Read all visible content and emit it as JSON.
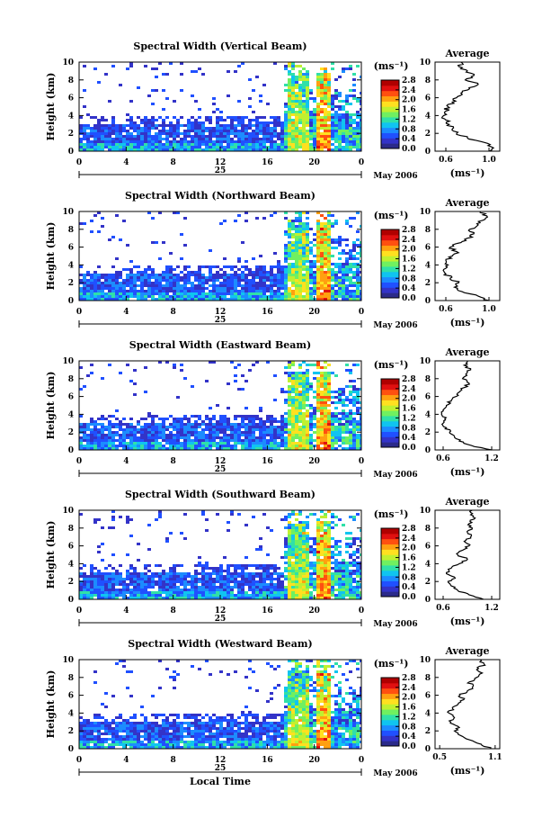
{
  "colors": {
    "scale": [
      "#2b2a8a",
      "#3333c8",
      "#2050ff",
      "#1c8cff",
      "#10c4f0",
      "#30e0a8",
      "#70f060",
      "#c0f030",
      "#ffe020",
      "#ffa010",
      "#ff5010",
      "#e01010",
      "#b00000"
    ],
    "background": "#ffffff"
  },
  "chart_data": [
    {
      "type": "heatmap",
      "title": "Spectral Width (Vertical Beam)",
      "ylabel": "Height (km)",
      "ylim": [
        0,
        10
      ],
      "y_ticks": [
        "0",
        "2",
        "4",
        "6",
        "8",
        "10"
      ],
      "x_ticks": [
        "0",
        "4",
        "8",
        "12",
        "16",
        "20",
        "0"
      ],
      "date_label": "25",
      "month_label": "May 2006",
      "colorbar": {
        "unit": "(ms⁻¹)",
        "ticks": [
          "0.0",
          "0.4",
          "0.8",
          "1.2",
          "1.6",
          "2.0",
          "2.4",
          "2.8"
        ],
        "range": [
          0,
          2.8
        ]
      },
      "profile": {
        "title": "Average",
        "xlabel": "(ms⁻¹)",
        "x_ticks": [
          "0.6",
          "1.0"
        ],
        "xlim": [
          0.5,
          1.1
        ],
        "points": [
          [
            0.0,
            1.0
          ],
          [
            0.5,
            1.02
          ],
          [
            1.0,
            0.95
          ],
          [
            1.5,
            0.8
          ],
          [
            2.0,
            0.7
          ],
          [
            2.5,
            0.66
          ],
          [
            3.0,
            0.63
          ],
          [
            3.5,
            0.6
          ],
          [
            4.0,
            0.58
          ],
          [
            4.5,
            0.6
          ],
          [
            5.0,
            0.62
          ],
          [
            5.5,
            0.66
          ],
          [
            6.0,
            0.7
          ],
          [
            6.5,
            0.74
          ],
          [
            7.0,
            0.82
          ],
          [
            7.5,
            0.9
          ],
          [
            8.0,
            0.78
          ],
          [
            8.5,
            0.86
          ],
          [
            9.0,
            0.8
          ],
          [
            9.5,
            0.72
          ],
          [
            10.0,
            0.74
          ]
        ]
      }
    },
    {
      "type": "heatmap",
      "title": "Spectral Width (Northward Beam)",
      "ylabel": "Height (km)",
      "ylim": [
        0,
        10
      ],
      "y_ticks": [
        "0",
        "2",
        "4",
        "6",
        "8",
        "10"
      ],
      "x_ticks": [
        "0",
        "4",
        "8",
        "12",
        "16",
        "20",
        "0"
      ],
      "date_label": "25",
      "month_label": "May 2006",
      "colorbar": {
        "unit": "(ms⁻¹)",
        "ticks": [
          "0.0",
          "0.4",
          "0.8",
          "1.2",
          "1.6",
          "2.0",
          "2.4",
          "2.8"
        ],
        "range": [
          0,
          2.8
        ]
      },
      "profile": {
        "title": "Average",
        "xlabel": "(ms⁻¹)",
        "x_ticks": [
          "0.6",
          "1.0"
        ],
        "xlim": [
          0.5,
          1.1
        ],
        "points": [
          [
            0.0,
            1.0
          ],
          [
            0.5,
            0.9
          ],
          [
            1.0,
            0.75
          ],
          [
            1.5,
            0.68
          ],
          [
            2.0,
            0.72
          ],
          [
            2.5,
            0.64
          ],
          [
            3.0,
            0.6
          ],
          [
            3.5,
            0.58
          ],
          [
            4.0,
            0.62
          ],
          [
            4.5,
            0.6
          ],
          [
            5.0,
            0.66
          ],
          [
            5.5,
            0.7
          ],
          [
            6.0,
            0.64
          ],
          [
            6.5,
            0.74
          ],
          [
            7.0,
            0.8
          ],
          [
            7.5,
            0.86
          ],
          [
            8.0,
            0.82
          ],
          [
            8.5,
            0.9
          ],
          [
            9.0,
            0.94
          ],
          [
            9.5,
            0.98
          ],
          [
            10.0,
            0.92
          ]
        ]
      }
    },
    {
      "type": "heatmap",
      "title": "Spectral Width (Eastward Beam)",
      "ylabel": "Height (km)",
      "ylim": [
        0,
        10
      ],
      "y_ticks": [
        "0",
        "2",
        "4",
        "6",
        "8",
        "10"
      ],
      "x_ticks": [
        "0",
        "4",
        "8",
        "12",
        "16",
        "20",
        "0"
      ],
      "date_label": "25",
      "month_label": "May 2006",
      "colorbar": {
        "unit": "(ms⁻¹)",
        "ticks": [
          "0.0",
          "0.4",
          "0.8",
          "1.2",
          "1.6",
          "2.0",
          "2.4",
          "2.8"
        ],
        "range": [
          0,
          2.8
        ]
      },
      "profile": {
        "title": "Average",
        "xlabel": "(ms⁻¹)",
        "x_ticks": [
          "0.6",
          "1.2"
        ],
        "xlim": [
          0.5,
          1.3
        ],
        "points": [
          [
            0.0,
            1.2
          ],
          [
            0.5,
            0.95
          ],
          [
            1.0,
            0.8
          ],
          [
            1.5,
            0.74
          ],
          [
            2.0,
            0.68
          ],
          [
            2.5,
            0.64
          ],
          [
            3.0,
            0.6
          ],
          [
            3.5,
            0.62
          ],
          [
            4.0,
            0.58
          ],
          [
            4.5,
            0.6
          ],
          [
            5.0,
            0.64
          ],
          [
            5.5,
            0.7
          ],
          [
            6.0,
            0.76
          ],
          [
            6.5,
            0.8
          ],
          [
            7.0,
            0.86
          ],
          [
            7.5,
            0.92
          ],
          [
            8.0,
            0.84
          ],
          [
            8.5,
            0.88
          ],
          [
            9.0,
            0.94
          ],
          [
            9.5,
            0.86
          ],
          [
            10.0,
            0.9
          ]
        ]
      }
    },
    {
      "type": "heatmap",
      "title": "Spectral Width (Southward Beam)",
      "ylabel": "Height (km)",
      "ylim": [
        0,
        10
      ],
      "y_ticks": [
        "0",
        "2",
        "4",
        "6",
        "8",
        "10"
      ],
      "x_ticks": [
        "0",
        "4",
        "8",
        "12",
        "16",
        "20",
        "0"
      ],
      "date_label": "25",
      "month_label": "May 2006",
      "colorbar": {
        "unit": "(ms⁻¹)",
        "ticks": [
          "0.0",
          "0.4",
          "0.8",
          "1.2",
          "1.6",
          "2.0",
          "2.4",
          "2.8"
        ],
        "range": [
          0,
          2.8
        ]
      },
      "profile": {
        "title": "Average",
        "xlabel": "(ms⁻¹)",
        "x_ticks": [
          "0.6",
          "1.2"
        ],
        "xlim": [
          0.5,
          1.3
        ],
        "points": [
          [
            0.0,
            1.1
          ],
          [
            0.5,
            0.92
          ],
          [
            1.0,
            0.78
          ],
          [
            1.5,
            0.7
          ],
          [
            2.0,
            0.66
          ],
          [
            2.5,
            0.74
          ],
          [
            3.0,
            0.64
          ],
          [
            3.5,
            0.7
          ],
          [
            4.0,
            0.8
          ],
          [
            4.5,
            0.9
          ],
          [
            5.0,
            0.78
          ],
          [
            5.5,
            0.84
          ],
          [
            6.0,
            0.92
          ],
          [
            6.5,
            0.86
          ],
          [
            7.0,
            0.94
          ],
          [
            7.5,
            0.9
          ],
          [
            8.0,
            0.96
          ],
          [
            8.5,
            0.92
          ],
          [
            9.0,
            0.98
          ],
          [
            9.5,
            0.94
          ],
          [
            10.0,
            0.96
          ]
        ]
      }
    },
    {
      "type": "heatmap",
      "title": "Spectral Width (Westward Beam)",
      "ylabel": "Height (km)",
      "ylim": [
        0,
        10
      ],
      "y_ticks": [
        "0",
        "2",
        "4",
        "6",
        "8",
        "10"
      ],
      "x_ticks": [
        "0",
        "4",
        "8",
        "12",
        "16",
        "20",
        "0"
      ],
      "date_label": "25",
      "month_label": "May 2006",
      "xlabel": "Local Time",
      "colorbar": {
        "unit": "(ms⁻¹)",
        "ticks": [
          "0.0",
          "0.4",
          "0.8",
          "1.2",
          "1.6",
          "2.0",
          "2.4",
          "2.8"
        ],
        "range": [
          0,
          2.8
        ]
      },
      "profile": {
        "title": "Average",
        "xlabel": "(ms⁻¹)",
        "x_ticks": [
          "0.5",
          "1.1"
        ],
        "xlim": [
          0.45,
          1.15
        ],
        "points": [
          [
            0.0,
            1.05
          ],
          [
            0.5,
            0.95
          ],
          [
            1.0,
            0.82
          ],
          [
            1.5,
            0.72
          ],
          [
            2.0,
            0.66
          ],
          [
            2.5,
            0.7
          ],
          [
            3.0,
            0.62
          ],
          [
            3.5,
            0.66
          ],
          [
            4.0,
            0.6
          ],
          [
            4.5,
            0.64
          ],
          [
            5.0,
            0.7
          ],
          [
            5.5,
            0.76
          ],
          [
            6.0,
            0.72
          ],
          [
            6.5,
            0.8
          ],
          [
            7.0,
            0.86
          ],
          [
            7.5,
            0.82
          ],
          [
            8.0,
            0.9
          ],
          [
            8.5,
            0.96
          ],
          [
            9.0,
            0.92
          ],
          [
            9.5,
            0.98
          ],
          [
            10.0,
            0.94
          ]
        ]
      }
    }
  ]
}
